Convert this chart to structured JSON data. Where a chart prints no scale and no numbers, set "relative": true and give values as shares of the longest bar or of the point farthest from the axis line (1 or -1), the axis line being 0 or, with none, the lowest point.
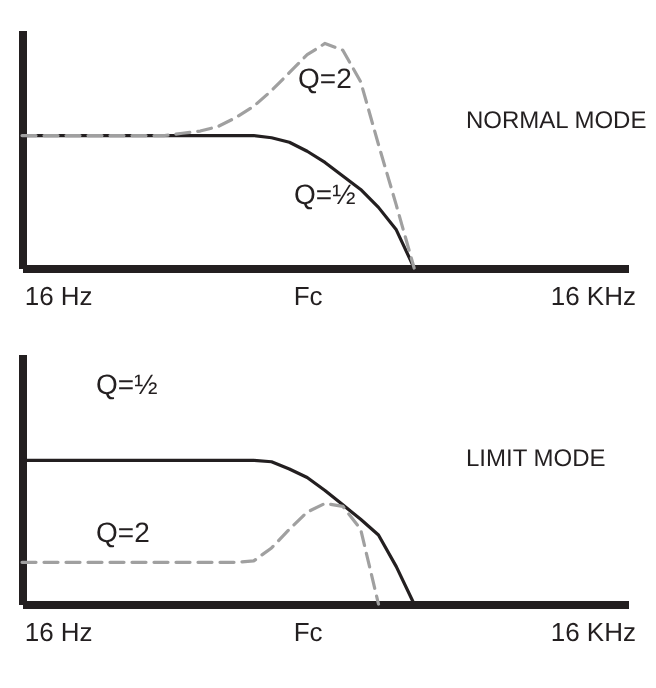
{
  "chart_data": [
    {
      "type": "line",
      "relative": true,
      "annotations": [
        "NORMAL MODE"
      ],
      "categories": [
        null,
        null,
        "16 Hz",
        null,
        null,
        null,
        null,
        null,
        null,
        null,
        null,
        null,
        null,
        null,
        null,
        null,
        "Fc",
        null,
        null,
        null,
        null,
        null,
        null,
        null,
        null,
        null,
        null,
        null,
        null,
        null,
        null,
        null,
        "16 KHz",
        null,
        null
      ],
      "series": [
        {
          "name": "Q=½",
          "color": "#231f20",
          "line_style": "solid",
          "values": [
            0.59,
            0.59,
            0.59,
            0.59,
            0.59,
            0.59,
            0.59,
            0.59,
            0.59,
            0.59,
            0.59,
            0.59,
            0.59,
            0.59,
            0.58,
            0.56,
            0.52,
            0.47,
            0.41,
            0.35,
            0.27,
            0.17,
            0,
            null,
            null,
            null,
            null,
            null,
            null,
            null,
            null,
            null,
            null,
            null,
            null
          ]
        },
        {
          "name": "Q=2",
          "color": "#a0a0a0",
          "line_style": "dashed",
          "values": [
            0.59,
            0.59,
            0.59,
            0.59,
            0.59,
            0.59,
            0.59,
            0.59,
            0.59,
            0.6,
            0.61,
            0.63,
            0.67,
            0.72,
            0.79,
            0.87,
            0.95,
            1,
            0.97,
            0.83,
            0.55,
            0.28,
            0,
            null,
            null,
            null,
            null,
            null,
            null,
            null,
            null,
            null,
            null,
            null,
            null
          ]
        }
      ]
    },
    {
      "type": "line",
      "relative": true,
      "annotations": [
        "LIMIT MODE"
      ],
      "categories": [
        null,
        null,
        "16 Hz",
        null,
        null,
        null,
        null,
        null,
        null,
        null,
        null,
        null,
        null,
        null,
        null,
        null,
        "Fc",
        null,
        null,
        null,
        null,
        null,
        null,
        null,
        null,
        null,
        null,
        null,
        null,
        null,
        null,
        null,
        "16 KHz",
        null,
        null
      ],
      "series": [
        {
          "name": "Q=½",
          "color": "#231f20",
          "line_style": "solid",
          "values": [
            1,
            1,
            1,
            1,
            1,
            1,
            1,
            1,
            1,
            1,
            1,
            1,
            1,
            1,
            0.99,
            0.94,
            0.88,
            0.79,
            0.69,
            0.59,
            0.48,
            0.26,
            0,
            null,
            null,
            null,
            null,
            null,
            null,
            null,
            null,
            null,
            null,
            null,
            null
          ]
        },
        {
          "name": "Q=2",
          "color": "#a0a0a0",
          "line_style": "dashed",
          "values": [
            0.29,
            0.29,
            0.29,
            0.29,
            0.29,
            0.29,
            0.29,
            0.29,
            0.29,
            0.29,
            0.29,
            0.29,
            0.29,
            0.3,
            0.39,
            0.52,
            0.64,
            0.7,
            0.68,
            0.52,
            0,
            null,
            null,
            null,
            null,
            null,
            null,
            null,
            null,
            null,
            null,
            null,
            null,
            null,
            null
          ]
        }
      ]
    }
  ]
}
